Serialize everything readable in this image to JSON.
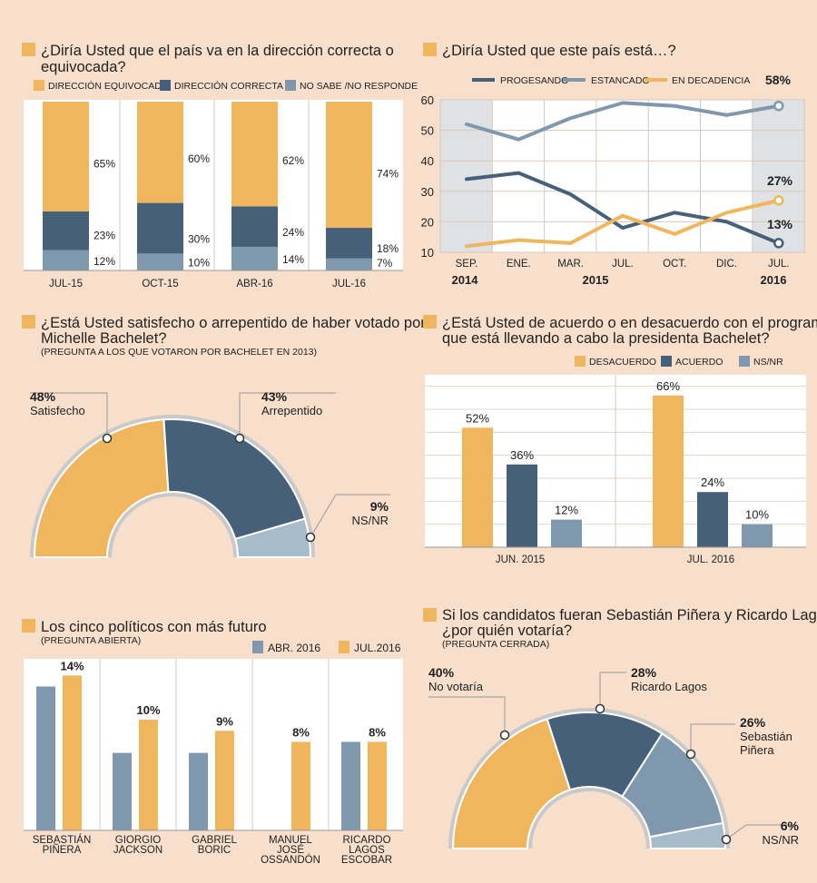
{
  "colors": {
    "orange": "#f0b65d",
    "dark": "#47607a",
    "mid": "#7f98ad",
    "light": "#a7bccb",
    "gridBg": "#ffffff",
    "band": "#dfe1e5",
    "bg": "#f7dfcc"
  },
  "chart_data": [
    {
      "id": "c1",
      "type": "bar",
      "stacked": true,
      "title_line1": "¿Diría Usted que el país va en la dirección correcta o",
      "title_line2": "equivocada?",
      "legend": [
        "DIRECCIÓN EQUIVOCADA",
        "DIRECCIÓN CORRECTA",
        "NO SABE /NO RESPONDE"
      ],
      "categories": [
        "JUL-15",
        "OCT-15",
        "ABR-16",
        "JUL-16"
      ],
      "series": [
        {
          "name": "DIRECCIÓN EQUIVOCADA",
          "values": [
            65,
            60,
            62,
            74
          ],
          "labels": [
            "65%",
            "60%",
            "62%",
            "74%"
          ]
        },
        {
          "name": "DIRECCIÓN CORRECTA",
          "values": [
            23,
            30,
            24,
            18
          ],
          "labels": [
            "23%",
            "30%",
            "24%",
            "18%"
          ]
        },
        {
          "name": "NO SABE /NO RESPONDE",
          "values": [
            12,
            10,
            14,
            7
          ],
          "labels": [
            "12%",
            "10%",
            "14%",
            "7%"
          ]
        }
      ]
    },
    {
      "id": "c2",
      "type": "line",
      "title": "¿Diría Usted que este país está…?",
      "legend": [
        "PROGESANDO",
        "ESTANCADO",
        "EN DECADENCIA"
      ],
      "x": [
        "SEP.",
        "ENE.",
        "MAR.",
        "JUL.",
        "OCT.",
        "DIC.",
        "JUL."
      ],
      "years": [
        "2014",
        "2015",
        "2016"
      ],
      "yticks": [
        "10",
        "20",
        "30",
        "40",
        "50",
        "60"
      ],
      "ylim": [
        10,
        60
      ],
      "series": [
        {
          "name": "PROGESANDO",
          "values": [
            34,
            36,
            29,
            18,
            23,
            20,
            13
          ]
        },
        {
          "name": "ESTANCADO",
          "values": [
            52,
            47,
            54,
            59,
            58,
            55,
            58
          ]
        },
        {
          "name": "EN DECADENCIA",
          "values": [
            12,
            14,
            13,
            22,
            16,
            23,
            27
          ]
        }
      ],
      "end_labels": [
        "13%",
        "58%",
        "27%"
      ]
    },
    {
      "id": "c3",
      "type": "pie",
      "title_line1": "¿Está Usted satisfecho o arrepentido de haber votado por",
      "title_line2": "Michelle Bachelet?",
      "subtitle": "(PREGUNTA A LOS QUE VOTARON POR BACHELET EN 2013)",
      "slices": [
        {
          "name": "Satisfecho",
          "value": 48,
          "label": "48%"
        },
        {
          "name": "Arrepentido",
          "value": 43,
          "label": "43%"
        },
        {
          "name": "NS/NR",
          "value": 9,
          "label": "9%"
        }
      ]
    },
    {
      "id": "c4",
      "type": "bar",
      "title_line1": "¿Está Usted de acuerdo o en desacuerdo con el programa",
      "title_line2": "que está llevando a cabo la presidenta Bachelet?",
      "legend": [
        "DESACUERDO",
        "ACUERDO",
        "NS/NR"
      ],
      "categories": [
        "JUN. 2015",
        "JUL. 2016"
      ],
      "ylim": [
        0,
        75
      ],
      "series": [
        {
          "name": "DESACUERDO",
          "values": [
            52,
            66
          ],
          "labels": [
            "52%",
            "66%"
          ]
        },
        {
          "name": "ACUERDO",
          "values": [
            36,
            24
          ],
          "labels": [
            "36%",
            "24%"
          ]
        },
        {
          "name": "NS/NR",
          "values": [
            12,
            10
          ],
          "labels": [
            "12%",
            "10%"
          ]
        }
      ]
    },
    {
      "id": "c5",
      "type": "bar",
      "title": "Los cinco políticos con más futuro",
      "subtitle": "(PREGUNTA ABIERTA)",
      "legend": [
        "ABR. 2016",
        "JUL.2016"
      ],
      "categories": [
        [
          "SEBASTIÁN",
          "PIÑERA"
        ],
        [
          "GIORGIO",
          "JACKSON"
        ],
        [
          "GABRIEL",
          "BORIC"
        ],
        [
          "MANUEL",
          "JOSÉ",
          "OSSANDÓN"
        ],
        [
          "RICARDO",
          "LAGOS",
          "ESCOBAR"
        ]
      ],
      "ylim": [
        0,
        15.5
      ],
      "series": [
        {
          "name": "ABR. 2016",
          "values": [
            13,
            7,
            7,
            0,
            8
          ]
        },
        {
          "name": "JUL.2016",
          "values": [
            14,
            10,
            9,
            8,
            8
          ],
          "labels": [
            "14%",
            "10%",
            "9%",
            "8%",
            "8%"
          ]
        }
      ]
    },
    {
      "id": "c6",
      "type": "pie",
      "title_line1": "Si los candidatos fueran Sebastián Piñera y Ricardo Lagos",
      "title_line2": "¿por quién votaría?",
      "subtitle": "(PREGUNTA CERRADA)",
      "slices": [
        {
          "name": "No votaría",
          "value": 40,
          "label": "40%"
        },
        {
          "name": "Ricardo Lagos",
          "value": 28,
          "label": "28%"
        },
        {
          "name": "Sebastián Piñera",
          "value": 26,
          "label": "26%",
          "name_lines": [
            "Sebastián",
            "Piñera"
          ]
        },
        {
          "name": "NS/NR",
          "value": 6,
          "label": "6%"
        }
      ]
    }
  ]
}
